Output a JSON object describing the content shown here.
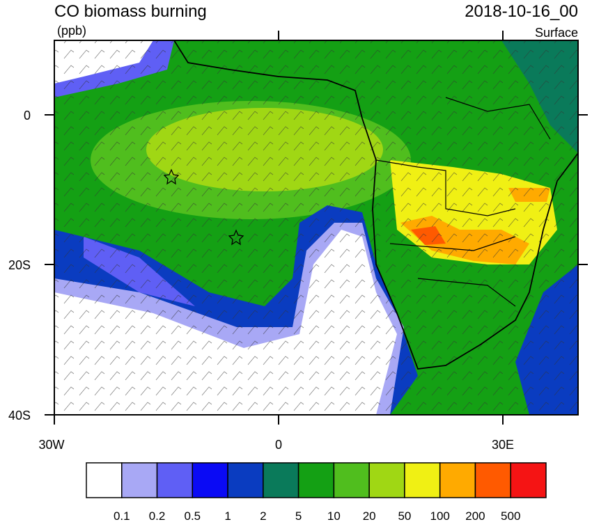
{
  "header": {
    "title": "CO biomass burning",
    "units": "(ppb)",
    "date": "2018-10-16_00",
    "level": "Surface"
  },
  "axes": {
    "y_ticks": [
      "0",
      "20S",
      "40S"
    ],
    "x_ticks": [
      "30W",
      "0",
      "30E"
    ]
  },
  "colorbar": {
    "colors": [
      "#ffffff",
      "#a8a8f5",
      "#5f5ff5",
      "#0a0af5",
      "#0a3cc0",
      "#0a7a5a",
      "#14a014",
      "#50be1e",
      "#a0d714",
      "#f0f014",
      "#ffaa00",
      "#ff5a00",
      "#f51414"
    ],
    "labels": [
      "0.1",
      "0.2",
      "0.5",
      "1",
      "2",
      "5",
      "10",
      "20",
      "50",
      "100",
      "200",
      "500"
    ]
  }
}
